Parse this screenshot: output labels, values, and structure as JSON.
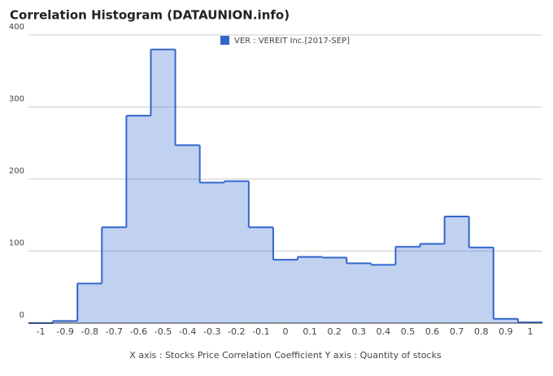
{
  "chart_data": {
    "type": "histogram",
    "title": "Correlation Histogram (DATAUNION.info)",
    "x_label": "X axis : Stocks Price Correlation Coefficient  Y axis : Quantity of stocks",
    "bins": [
      -1.05,
      -0.95,
      -0.85,
      -0.75,
      -0.65,
      -0.55,
      -0.45,
      -0.35,
      -0.25,
      -0.15,
      -0.05,
      0.05,
      0.15,
      0.25,
      0.35,
      0.45,
      0.55,
      0.65,
      0.75,
      0.85,
      0.95,
      1.05
    ],
    "series": [
      {
        "name": "VER : VEREIT Inc.[2017-SEP]",
        "color": "#3366cc",
        "values": [
          0,
          3,
          55,
          133,
          288,
          380,
          247,
          195,
          197,
          133,
          88,
          92,
          91,
          83,
          81,
          106,
          110,
          148,
          105,
          6,
          1
        ]
      }
    ],
    "xlim": [
      -1.05,
      1.05
    ],
    "xticks": [
      -1,
      -0.9,
      -0.8,
      -0.7,
      -0.6,
      -0.5,
      -0.4,
      -0.3,
      -0.2,
      -0.1,
      0,
      0.1,
      0.2,
      0.3,
      0.4,
      0.5,
      0.6,
      0.7,
      0.8,
      0.9,
      1
    ],
    "ylim": [
      0,
      400
    ],
    "yticks": [
      0,
      100,
      200,
      300,
      400
    ],
    "grid": true,
    "legend": "top"
  }
}
